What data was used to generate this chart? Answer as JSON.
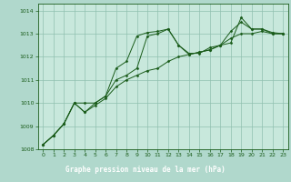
{
  "bg_color": "#b0d8cc",
  "plot_bg_color": "#c8e8dc",
  "grid_color": "#90c0b0",
  "line_color": "#1a5c1a",
  "marker_color": "#1a5c1a",
  "xlabel": "Graphe pression niveau de la mer (hPa)",
  "xlabel_bg": "#2a6e2a",
  "xlabel_text_color": "#ffffff",
  "tick_color": "#1a5c1a",
  "xlim": [
    -0.5,
    23.5
  ],
  "ylim": [
    1008,
    1014.3
  ],
  "yticks": [
    1008,
    1009,
    1010,
    1011,
    1012,
    1013,
    1014
  ],
  "xticks": [
    0,
    1,
    2,
    3,
    4,
    5,
    6,
    7,
    8,
    9,
    10,
    11,
    12,
    13,
    14,
    15,
    16,
    17,
    18,
    19,
    20,
    21,
    22,
    23
  ],
  "series": [
    [
      1008.2,
      1008.6,
      1009.1,
      1010.0,
      1009.6,
      1010.0,
      1010.3,
      1011.5,
      1011.8,
      1012.9,
      1013.05,
      1013.1,
      1013.2,
      1012.5,
      1012.15,
      1012.15,
      1012.4,
      1012.5,
      1012.6,
      1013.7,
      1013.2,
      1013.2,
      1013.05,
      1013.0
    ],
    [
      1008.2,
      1008.6,
      1009.1,
      1010.0,
      1010.0,
      1010.0,
      1010.3,
      1011.0,
      1011.2,
      1011.5,
      1012.9,
      1013.0,
      1013.2,
      1012.5,
      1012.1,
      1012.2,
      1012.3,
      1012.5,
      1013.1,
      1013.5,
      1013.2,
      1013.2,
      1013.0,
      1013.0
    ],
    [
      1008.2,
      1008.6,
      1009.1,
      1010.0,
      1009.6,
      1009.9,
      1010.2,
      1010.7,
      1011.0,
      1011.2,
      1011.4,
      1011.5,
      1011.8,
      1012.0,
      1012.1,
      1012.2,
      1012.3,
      1012.5,
      1012.8,
      1013.0,
      1013.0,
      1013.1,
      1013.0,
      1013.0
    ]
  ]
}
